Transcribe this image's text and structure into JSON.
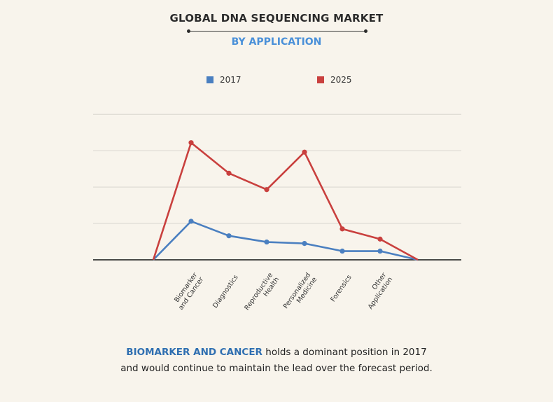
{
  "chart_data": {
    "type": "line",
    "title": "GLOBAL DNA SEQUENCING MARKET",
    "subtitle": "BY APPLICATION",
    "categories": [
      "",
      "Biomarker\nand Cancer",
      "Diagnostics",
      "Reproductive\nHealth",
      "Personalized\nMedicine",
      "Forensics",
      "Other\nApplication",
      ""
    ],
    "series": [
      {
        "name": "2017",
        "color": "#4a7fc0",
        "values": [
          0,
          10.6,
          6.6,
          4.9,
          4.5,
          2.4,
          2.4,
          0
        ]
      },
      {
        "name": "2025",
        "color": "#c9403e",
        "values": [
          0,
          32.2,
          23.8,
          19.3,
          29.6,
          8.5,
          5.7,
          0
        ]
      }
    ],
    "ylim": [
      0,
      41
    ],
    "grid": true,
    "legend_position": "top"
  },
  "footer": {
    "highlight": "BIOMARKER AND CANCER",
    "line1_rest": " holds a dominant position in 2017",
    "line2": "and would continue to maintain the lead over the forecast period."
  }
}
